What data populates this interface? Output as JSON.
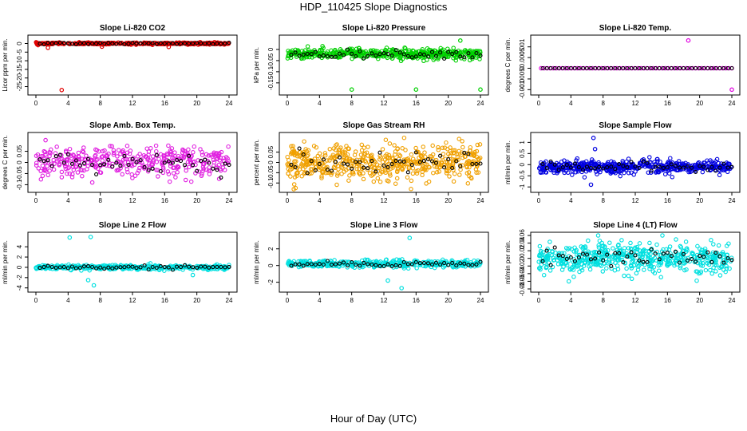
{
  "title": "HDP_110425  Slope Diagnostics",
  "xlabel": "Hour of Day (UTC)",
  "chart_data": [
    {
      "type": "scatter",
      "title": "Slope Li-820 CO2",
      "ylabel": "Licor ppm per min.",
      "color": "#e00000",
      "xlim": [
        0,
        24
      ],
      "xticks": [
        0,
        4,
        8,
        12,
        16,
        20,
        24
      ],
      "ylim": [
        -28,
        3
      ],
      "yticks": [
        0,
        -5,
        -10,
        -15,
        -20,
        -25
      ],
      "spread": 0.5,
      "density": "medium",
      "outliers": [
        [
          3.2,
          -27
        ],
        [
          1.5,
          -2.5
        ],
        [
          16.5,
          -2
        ],
        [
          8.2,
          -1.8
        ]
      ],
      "black_base": 0
    },
    {
      "type": "scatter",
      "title": "Slope Li-820 Pressure",
      "ylabel": "kPa per min.",
      "color": "#00d000",
      "xlim": [
        0,
        24
      ],
      "xticks": [
        0,
        4,
        8,
        12,
        16,
        20,
        24
      ],
      "ylim": [
        -0.19,
        0.05
      ],
      "yticks": [
        0,
        -0.05,
        -0.1,
        -0.15
      ],
      "spread": 0.02,
      "density": "dense",
      "outliers": [
        [
          8,
          -0.18
        ],
        [
          16,
          -0.18
        ],
        [
          24,
          -0.18
        ],
        [
          21.5,
          0.04
        ]
      ],
      "black_base": -0.02
    },
    {
      "type": "scatter",
      "title": "Slope Li-820 Temp.",
      "ylabel": "degrees C per min.",
      "color": "#e000e0",
      "xlim": [
        0,
        24
      ],
      "xticks": [
        0,
        4,
        8,
        12,
        16,
        20,
        24
      ],
      "ylim": [
        -0.0011,
        0.0014
      ],
      "yticks": [
        0.001,
        0.0005,
        0,
        -0.0005,
        -0.001
      ],
      "spread": 0,
      "density": "line",
      "outliers": [
        [
          18.6,
          0.0013
        ],
        [
          24,
          -0.001
        ]
      ],
      "black_base": 0
    },
    {
      "type": "scatter",
      "title": "Slope Amb. Box Temp.",
      "ylabel": "degrees C per min.",
      "color": "#e020e0",
      "xlim": [
        0,
        24
      ],
      "xticks": [
        0,
        4,
        8,
        12,
        16,
        20,
        24
      ],
      "ylim": [
        -0.12,
        0.12
      ],
      "yticks": [
        0.05,
        0,
        -0.05,
        -0.1
      ],
      "spread": 0.06,
      "density": "medium",
      "outliers": [
        [
          1.2,
          0.1
        ],
        [
          7,
          -0.09
        ]
      ],
      "black_base": 0
    },
    {
      "type": "scatter",
      "title": "Slope Gas Stream RH",
      "ylabel": "percent per min.",
      "color": "#f0a000",
      "xlim": [
        0,
        24
      ],
      "xticks": [
        0,
        4,
        8,
        12,
        16,
        20,
        24
      ],
      "ylim": [
        -0.13,
        0.13
      ],
      "yticks": [
        0.05,
        0,
        -0.05,
        -0.1
      ],
      "spread": 0.08,
      "density": "dense",
      "outliers": [],
      "black_base": 0
    },
    {
      "type": "scatter",
      "title": "Slope Sample Flow",
      "ylabel": "ml/min per min.",
      "color": "#0000e0",
      "xlim": [
        0,
        24
      ],
      "xticks": [
        0,
        4,
        8,
        12,
        16,
        20,
        24
      ],
      "ylim": [
        -1.1,
        1.3
      ],
      "yticks": [
        1,
        0.5,
        0,
        -0.5,
        -1
      ],
      "spread": 0.25,
      "density": "dense",
      "outliers": [
        [
          6.8,
          1.2
        ],
        [
          6.5,
          -0.9
        ],
        [
          7,
          0.7
        ]
      ],
      "black_base": -0.1
    },
    {
      "type": "scatter",
      "title": "Slope Line 2 Flow",
      "ylabel": "ml/min per min.",
      "color": "#00e0e0",
      "xlim": [
        0,
        24
      ],
      "xticks": [
        0,
        4,
        8,
        12,
        16,
        20,
        24
      ],
      "ylim": [
        -4.2,
        6.2
      ],
      "yticks": [
        4,
        2,
        0,
        -2,
        -4
      ],
      "spread": 0.4,
      "density": "medium",
      "outliers": [
        [
          4.2,
          5.8
        ],
        [
          6.8,
          5.9
        ],
        [
          7.2,
          -3.5
        ],
        [
          19.5,
          -1.5
        ],
        [
          6.5,
          -2.5
        ]
      ],
      "black_base": 0
    },
    {
      "type": "scatter",
      "title": "Slope Line 3 Flow",
      "ylabel": "ml/min per min.",
      "color": "#00e0e0",
      "xlim": [
        0,
        24
      ],
      "xticks": [
        0,
        4,
        8,
        12,
        16,
        20,
        24
      ],
      "ylim": [
        -2.8,
        3.6
      ],
      "yticks": [
        2,
        0,
        -2
      ],
      "spread": 0.4,
      "density": "medium",
      "outliers": [
        [
          15.2,
          3.3
        ],
        [
          14.2,
          -2.7
        ],
        [
          12.5,
          -1.8
        ]
      ],
      "black_base": 0.2
    },
    {
      "type": "scatter",
      "title": "Slope Line 4 (LT) Flow",
      "ylabel": "ml/min per min.",
      "color": "#00e0e0",
      "xlim": [
        0,
        24
      ],
      "xticks": [
        0,
        4,
        8,
        12,
        16,
        20,
        24
      ],
      "ylim": [
        -0.08,
        0.06
      ],
      "yticks": [
        0.06,
        0.04,
        0.02,
        0,
        -0.02,
        -0.04,
        -0.06,
        -0.08
      ],
      "spread": 0.035,
      "density": "dense",
      "outliers": [],
      "black_base": 0
    }
  ]
}
